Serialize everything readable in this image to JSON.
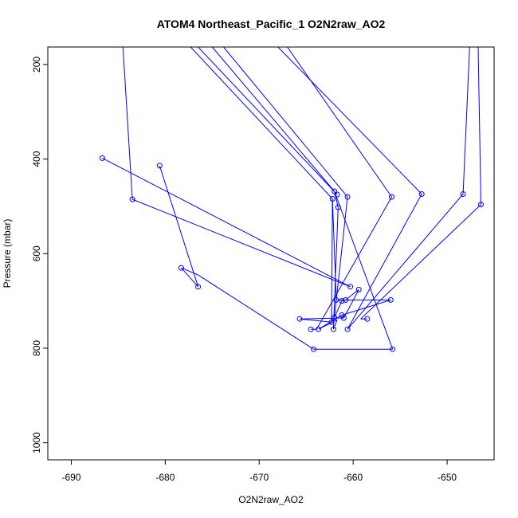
{
  "chart_data": {
    "type": "line",
    "title": "ATOM4 Northeast_Pacific_1 O2N2raw_AO2",
    "xlabel": "O2N2raw_AO2",
    "ylabel": "Pressure (mbar)",
    "xlim": [
      -692.5,
      -645.0
    ],
    "ylim": [
      1036,
      163
    ],
    "y_reversed": true,
    "xticks": [
      -690,
      -680,
      -670,
      -660,
      -650
    ],
    "yticks": [
      200,
      400,
      600,
      800,
      1000
    ],
    "xtick_labels": [
      "-690",
      "-680",
      "-670",
      "-660",
      "-650"
    ],
    "ytick_labels": [
      "200",
      "400",
      "600",
      "800",
      "1000"
    ],
    "grid": false,
    "series_color": "#0000ff",
    "segments": [
      {
        "x": [
          -684.5,
          -683.5
        ],
        "y": [
          163,
          485
        ]
      },
      {
        "x": [
          -683.5,
          -660.3
        ],
        "y": [
          485,
          670
        ]
      },
      {
        "x": [
          -686.7,
          -660.3
        ],
        "y": [
          398,
          670
        ]
      },
      {
        "x": [
          -680.6,
          -676.5
        ],
        "y": [
          414,
          670
        ]
      },
      {
        "x": [
          -676.5,
          -678.3
        ],
        "y": [
          670,
          630
        ]
      },
      {
        "x": [
          -678.3,
          -676.5
        ],
        "y": [
          630,
          645
        ]
      },
      {
        "x": [
          -676.5,
          -664.2
        ],
        "y": [
          645,
          802
        ]
      },
      {
        "x": [
          -664.2,
          -655.8
        ],
        "y": [
          802,
          802
        ]
      },
      {
        "x": [
          -655.8,
          -662.0
        ],
        "y": [
          802,
          468
        ]
      },
      {
        "x": [
          -662.0,
          -661.6
        ],
        "y": [
          468,
          502
        ]
      },
      {
        "x": [
          -661.6,
          -662.1
        ],
        "y": [
          502,
          760
        ]
      },
      {
        "x": [
          -662.1,
          -661.7
        ],
        "y": [
          760,
          740
        ]
      },
      {
        "x": [
          -661.7,
          -663.7
        ],
        "y": [
          740,
          760
        ]
      },
      {
        "x": [
          -663.7,
          -661.2
        ],
        "y": [
          760,
          730
        ]
      },
      {
        "x": [
          -661.2,
          -656.0
        ],
        "y": [
          730,
          698
        ]
      },
      {
        "x": [
          -656.0,
          -661.8
        ],
        "y": [
          698,
          698
        ]
      },
      {
        "x": [
          -661.8,
          -662.2
        ],
        "y": [
          698,
          484
        ]
      },
      {
        "x": [
          -662.2,
          -662.3
        ],
        "y": [
          484,
          745
        ]
      },
      {
        "x": [
          -662.3,
          -665.7
        ],
        "y": [
          745,
          738
        ]
      },
      {
        "x": [
          -665.7,
          -661.0
        ],
        "y": [
          738,
          736
        ]
      },
      {
        "x": [
          -661.0,
          -659.4
        ],
        "y": [
          736,
          676
        ]
      },
      {
        "x": [
          -659.4,
          -660.8
        ],
        "y": [
          676,
          698
        ]
      },
      {
        "x": [
          -660.8,
          -661.2
        ],
        "y": [
          698,
          700
        ]
      },
      {
        "x": [
          -661.2,
          -662.0
        ],
        "y": [
          700,
          735
        ]
      },
      {
        "x": [
          -662.0,
          -660.6
        ],
        "y": [
          735,
          480
        ]
      },
      {
        "x": [
          -660.6,
          -673.8
        ],
        "y": [
          480,
          163
        ]
      },
      {
        "x": [
          -675.0,
          -662.0
        ],
        "y": [
          163,
          468
        ]
      },
      {
        "x": [
          -676.5,
          -661.7
        ],
        "y": [
          163,
          475
        ]
      },
      {
        "x": [
          -664.5,
          -663.9
        ],
        "y": [
          760,
          760
        ]
      },
      {
        "x": [
          -663.9,
          -655.9
        ],
        "y": [
          760,
          480
        ]
      },
      {
        "x": [
          -655.9,
          -667.0
        ],
        "y": [
          480,
          163
        ]
      },
      {
        "x": [
          -668.0,
          -652.7
        ],
        "y": [
          163,
          474
        ]
      },
      {
        "x": [
          -652.7,
          -660.6
        ],
        "y": [
          474,
          760
        ]
      },
      {
        "x": [
          -660.6,
          -648.3
        ],
        "y": [
          760,
          474
        ]
      },
      {
        "x": [
          -648.3,
          -647.6
        ],
        "y": [
          474,
          163
        ]
      },
      {
        "x": [
          -646.7,
          -646.4
        ],
        "y": [
          163,
          496
        ]
      },
      {
        "x": [
          -646.4,
          -659.2
        ],
        "y": [
          496,
          738
        ]
      },
      {
        "x": [
          -659.2,
          -658.5
        ],
        "y": [
          738,
          738
        ]
      },
      {
        "x": [
          -677.3,
          -662.2
        ],
        "y": [
          163,
          484
        ]
      }
    ],
    "points": [
      {
        "x": -686.7,
        "y": 398
      },
      {
        "x": -683.5,
        "y": 485
      },
      {
        "x": -680.6,
        "y": 414
      },
      {
        "x": -678.3,
        "y": 630
      },
      {
        "x": -676.5,
        "y": 670
      },
      {
        "x": -662.0,
        "y": 468
      },
      {
        "x": -662.2,
        "y": 484
      },
      {
        "x": -661.7,
        "y": 475
      },
      {
        "x": -660.6,
        "y": 480
      },
      {
        "x": -661.6,
        "y": 502
      },
      {
        "x": -655.9,
        "y": 480
      },
      {
        "x": -652.7,
        "y": 474
      },
      {
        "x": -648.3,
        "y": 474
      },
      {
        "x": -646.4,
        "y": 496
      },
      {
        "x": -660.3,
        "y": 670
      },
      {
        "x": -659.4,
        "y": 676
      },
      {
        "x": -661.8,
        "y": 698
      },
      {
        "x": -661.2,
        "y": 700
      },
      {
        "x": -660.8,
        "y": 698
      },
      {
        "x": -656.0,
        "y": 698
      },
      {
        "x": -665.7,
        "y": 738
      },
      {
        "x": -662.0,
        "y": 735
      },
      {
        "x": -662.3,
        "y": 745
      },
      {
        "x": -661.2,
        "y": 730
      },
      {
        "x": -661.0,
        "y": 736
      },
      {
        "x": -658.5,
        "y": 738
      },
      {
        "x": -664.5,
        "y": 760
      },
      {
        "x": -663.7,
        "y": 760
      },
      {
        "x": -662.1,
        "y": 760
      },
      {
        "x": -660.6,
        "y": 760
      },
      {
        "x": -664.2,
        "y": 802
      },
      {
        "x": -655.8,
        "y": 802
      }
    ]
  }
}
